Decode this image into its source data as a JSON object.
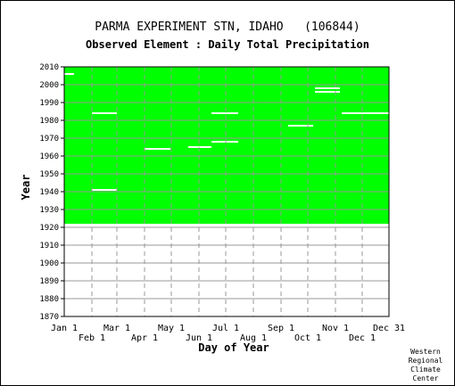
{
  "header": {
    "title": "PARMA EXPERIMENT STN, IDAHO   (106844)",
    "subtitle": "Observed Element : Daily Total Precipitation"
  },
  "chart_data": {
    "type": "heatmap",
    "xlabel": "Day of Year",
    "ylabel": "Year",
    "x_ticks_top_row": [
      "Jan 1",
      "Mar 1",
      "May 1",
      "Jul 1",
      "Sep 1",
      "Nov 1",
      "Dec 31"
    ],
    "x_ticks_bottom_row": [
      "Feb 1",
      "Apr 1",
      "Jun 1",
      "Aug 1",
      "Oct 1",
      "Dec 1"
    ],
    "y_ticks": [
      "2010",
      "2000",
      "1990",
      "1980",
      "1970",
      "1960",
      "1950",
      "1940",
      "1930",
      "1920",
      "1910",
      "1900",
      "1890",
      "1880",
      "1870"
    ],
    "ylim": [
      1870,
      2010
    ],
    "xlim_day": [
      1,
      365
    ],
    "month_gridline_days": [
      32,
      60,
      91,
      121,
      152,
      182,
      213,
      244,
      274,
      305,
      335
    ],
    "data_period_years": [
      1922,
      2010
    ],
    "fill_color": "#00ff00",
    "missing_color": "#ffffff",
    "grid_color": "#999999",
    "missing_segments": [
      {
        "year": 1984,
        "day_start": 32,
        "day_end": 60
      },
      {
        "year": 1941,
        "day_start": 32,
        "day_end": 60
      },
      {
        "year": 1964,
        "day_start": 91,
        "day_end": 120
      },
      {
        "year": 1965,
        "day_start": 140,
        "day_end": 166
      },
      {
        "year": 1968,
        "day_start": 166,
        "day_end": 196
      },
      {
        "year": 1984,
        "day_start": 166,
        "day_end": 196
      },
      {
        "year": 1977,
        "day_start": 252,
        "day_end": 280
      },
      {
        "year": 1998,
        "day_start": 282,
        "day_end": 310
      },
      {
        "year": 1996,
        "day_start": 282,
        "day_end": 310
      },
      {
        "year": 1984,
        "day_start": 312,
        "day_end": 365
      },
      {
        "year": 1921,
        "day_start": 280,
        "day_end": 365
      },
      {
        "year": 2006,
        "day_start": 1,
        "day_end": 12
      }
    ]
  },
  "credit": {
    "line1": "Western",
    "line2": "Regional",
    "line3": "Climate",
    "line4": "Center"
  }
}
